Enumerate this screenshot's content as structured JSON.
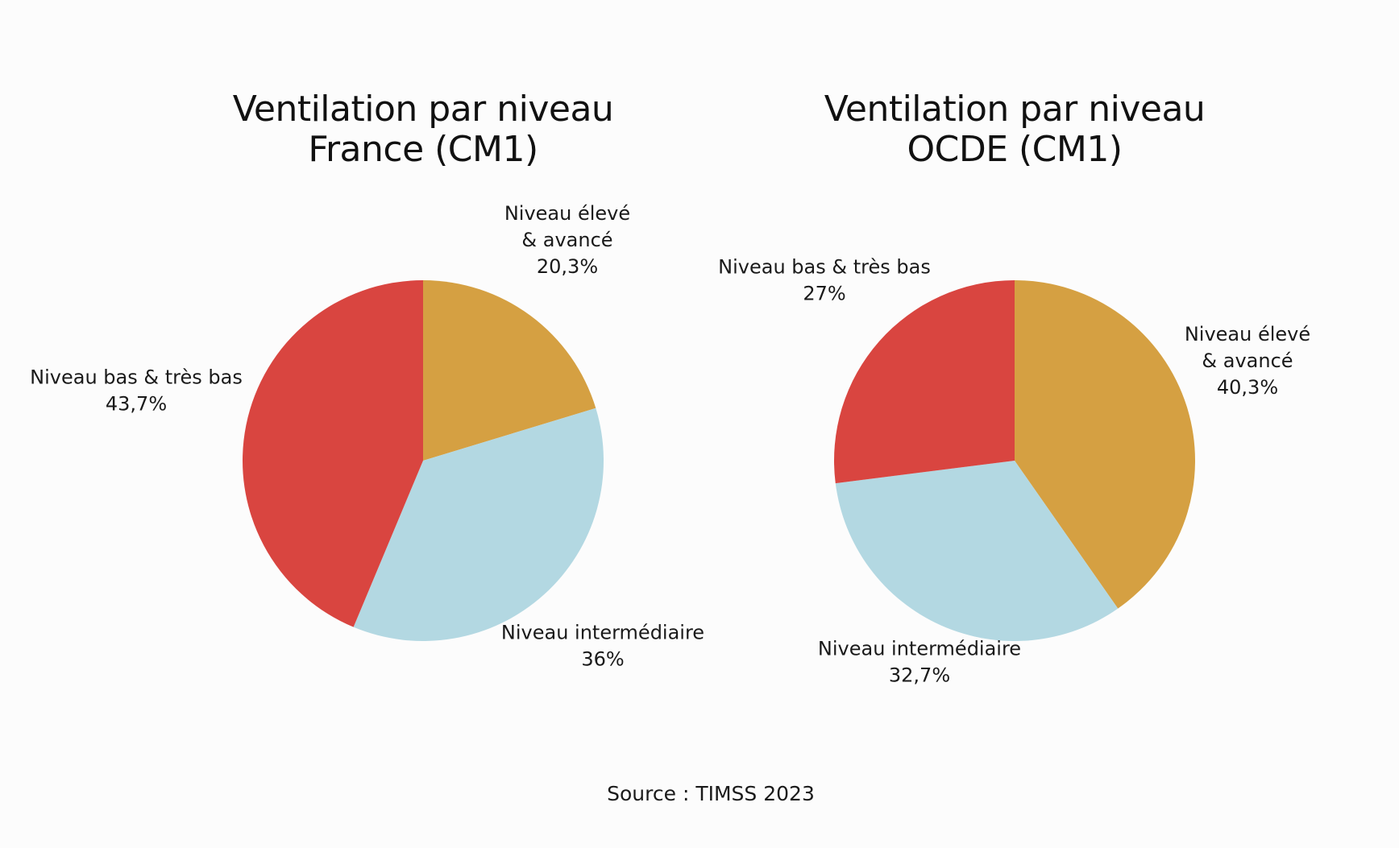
{
  "colors": {
    "Niveau élevé & avancé": "#d5a042",
    "Niveau intermédiaire": "#b3d8e2",
    "Niveau bas & très bas": "#d94540"
  },
  "source": "Source : TIMSS 2023",
  "chart_data": [
    {
      "type": "pie",
      "title": [
        "Ventilation par niveau",
        "France (CM1)"
      ],
      "slices": [
        {
          "category": "Niveau élevé & avancé",
          "label_lines": [
            "Niveau élevé",
            "& avancé"
          ],
          "value": 20.3,
          "value_text": "20,3%"
        },
        {
          "category": "Niveau intermédiaire",
          "label_lines": [
            "Niveau intermédiaire"
          ],
          "value": 36,
          "value_text": "36%"
        },
        {
          "category": "Niveau bas & très bas",
          "label_lines": [
            "Niveau bas & très bas"
          ],
          "value": 43.7,
          "value_text": "43,7%"
        }
      ]
    },
    {
      "type": "pie",
      "title": [
        "Ventilation par niveau",
        "OCDE (CM1)"
      ],
      "slices": [
        {
          "category": "Niveau élevé & avancé",
          "label_lines": [
            "Niveau élevé",
            "& avancé"
          ],
          "value": 40.3,
          "value_text": "40,3%"
        },
        {
          "category": "Niveau intermédiaire",
          "label_lines": [
            "Niveau intermédiaire"
          ],
          "value": 32.7,
          "value_text": "32,7%"
        },
        {
          "category": "Niveau bas & très bas",
          "label_lines": [
            "Niveau bas & très bas"
          ],
          "value": 27,
          "value_text": "27%"
        }
      ]
    }
  ]
}
